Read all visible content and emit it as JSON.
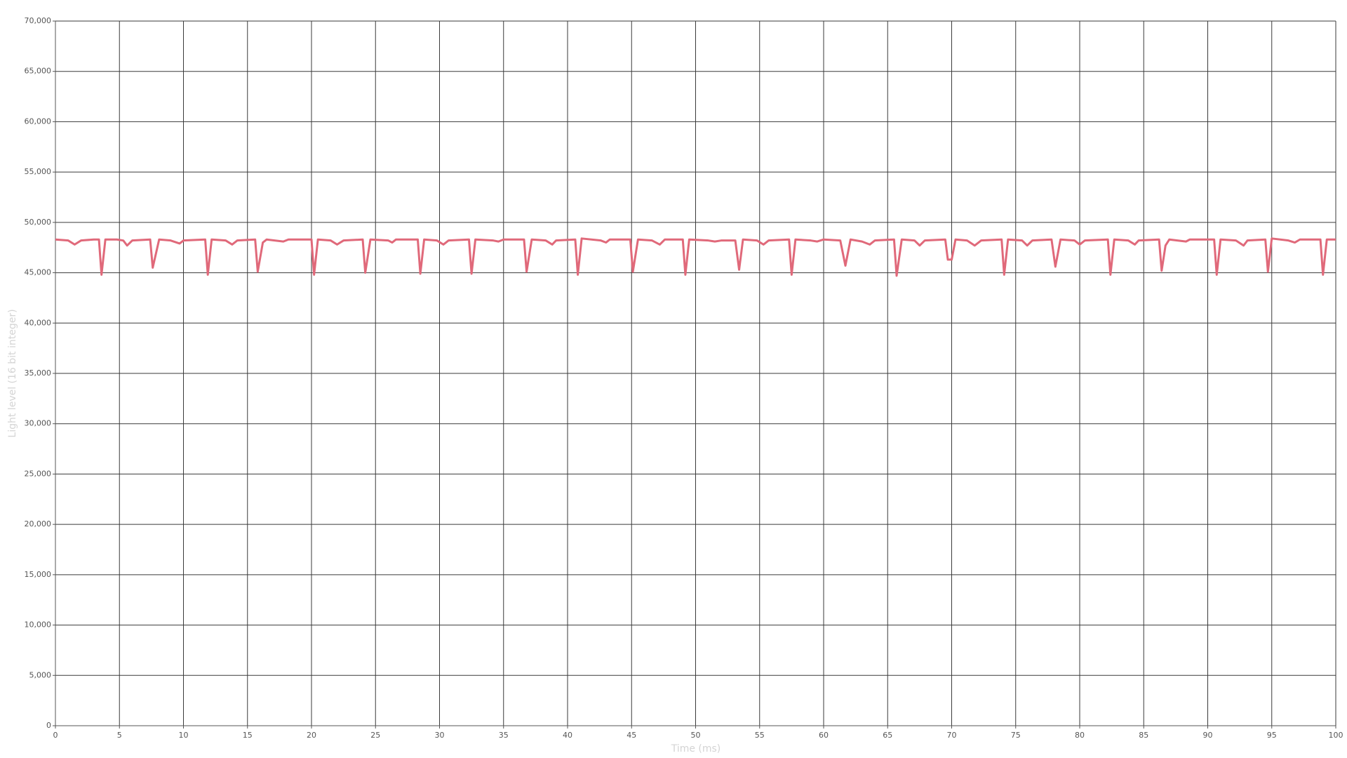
{
  "chart_data": {
    "type": "line",
    "xlabel": "Time (ms)",
    "ylabel": "Light level (16 bit integer)",
    "x": [
      0,
      1,
      1.5,
      2,
      3,
      3.4,
      3.6,
      3.9,
      4.8,
      5.3,
      5.6,
      6,
      7.4,
      7.6,
      8.1,
      9,
      9.7,
      10,
      11.7,
      11.9,
      12.2,
      13.3,
      13.8,
      14.2,
      15.6,
      15.8,
      16.2,
      16.5,
      17.8,
      18.2,
      20,
      20.2,
      20.5,
      21.5,
      22,
      22.5,
      24,
      24.2,
      24.6,
      26,
      26.3,
      26.6,
      28.3,
      28.5,
      28.8,
      29.8,
      30.3,
      30.7,
      32.3,
      32.5,
      32.8,
      34.2,
      34.6,
      35,
      36.6,
      36.8,
      37.2,
      38.3,
      38.8,
      39.1,
      40.6,
      40.8,
      41.1,
      42.6,
      43,
      43.3,
      44.9,
      45.1,
      45.5,
      46.6,
      47.2,
      47.6,
      49,
      49.2,
      49.5,
      51,
      51.5,
      52,
      53.1,
      53.4,
      53.7,
      54.8,
      55.3,
      55.7,
      57.3,
      57.5,
      57.8,
      59,
      59.5,
      60,
      61.3,
      61.7,
      62.1,
      63,
      63.6,
      64,
      65.5,
      65.7,
      66.1,
      67.1,
      67.5,
      67.9,
      69.5,
      69.7,
      70,
      70.3,
      71.2,
      71.8,
      72.3,
      73.9,
      74.1,
      74.4,
      75.5,
      75.9,
      76.3,
      77.8,
      78.1,
      78.5,
      79.6,
      80,
      80.4,
      82.2,
      82.4,
      82.7,
      83.8,
      84.3,
      84.6,
      86.2,
      86.4,
      86.7,
      87,
      88.3,
      88.6,
      90.5,
      90.7,
      91,
      92.2,
      92.8,
      93.1,
      94.5,
      94.7,
      95,
      96.3,
      96.8,
      97.2,
      98.8,
      99,
      99.3,
      100
    ],
    "series": [
      {
        "name": "Light level",
        "color": "#e0697a",
        "values": [
          48300,
          48200,
          47800,
          48200,
          48300,
          48300,
          44800,
          48300,
          48300,
          48200,
          47700,
          48200,
          48300,
          45500,
          48300,
          48200,
          47900,
          48200,
          48300,
          44800,
          48300,
          48200,
          47800,
          48200,
          48300,
          45100,
          48000,
          48300,
          48100,
          48300,
          48300,
          44800,
          48300,
          48200,
          47800,
          48200,
          48300,
          45000,
          48300,
          48200,
          48000,
          48300,
          48300,
          44900,
          48300,
          48200,
          47800,
          48200,
          48300,
          44900,
          48300,
          48200,
          48100,
          48300,
          48300,
          45100,
          48300,
          48200,
          47800,
          48200,
          48300,
          44800,
          48400,
          48200,
          48000,
          48300,
          48300,
          45100,
          48300,
          48200,
          47800,
          48300,
          48300,
          44800,
          48300,
          48200,
          48100,
          48200,
          48200,
          45300,
          48300,
          48200,
          47800,
          48200,
          48300,
          44800,
          48300,
          48200,
          48100,
          48300,
          48200,
          45700,
          48300,
          48100,
          47800,
          48200,
          48300,
          44700,
          48300,
          48200,
          47700,
          48200,
          48300,
          46300,
          46300,
          48300,
          48200,
          47700,
          48200,
          48300,
          44800,
          48300,
          48200,
          47700,
          48200,
          48300,
          45600,
          48300,
          48200,
          47800,
          48200,
          48300,
          44800,
          48300,
          48200,
          47800,
          48200,
          48300,
          45200,
          47700,
          48300,
          48100,
          48300,
          48300,
          44800,
          48300,
          48200,
          47700,
          48200,
          48300,
          45100,
          48400,
          48200,
          48000,
          48300,
          48300,
          44800,
          48300,
          48300
        ]
      }
    ],
    "xlim": [
      0,
      100
    ],
    "xticks": [
      0,
      5,
      10,
      15,
      20,
      25,
      30,
      35,
      40,
      45,
      50,
      55,
      60,
      65,
      70,
      75,
      80,
      85,
      90,
      95,
      100
    ],
    "ylim": [
      0,
      70000
    ],
    "yticks": [
      0,
      {
        "value": 5000,
        "label": "5,000"
      },
      {
        "value": 10000,
        "label": "10,000"
      },
      {
        "value": 15000,
        "label": "15,000"
      },
      {
        "value": 20000,
        "label": "20,000"
      },
      {
        "value": 25000,
        "label": "25,000"
      },
      {
        "value": 30000,
        "label": "30,000"
      },
      {
        "value": 35000,
        "label": "35,000"
      },
      {
        "value": 40000,
        "label": "40,000"
      },
      {
        "value": 45000,
        "label": "45,000"
      },
      {
        "value": 50000,
        "label": "50,000"
      },
      {
        "value": 55000,
        "label": "55,000"
      },
      {
        "value": 60000,
        "label": "60,000"
      },
      {
        "value": 65000,
        "label": "65,000"
      },
      {
        "value": 70000,
        "label": "70,000"
      }
    ],
    "grid": true
  }
}
